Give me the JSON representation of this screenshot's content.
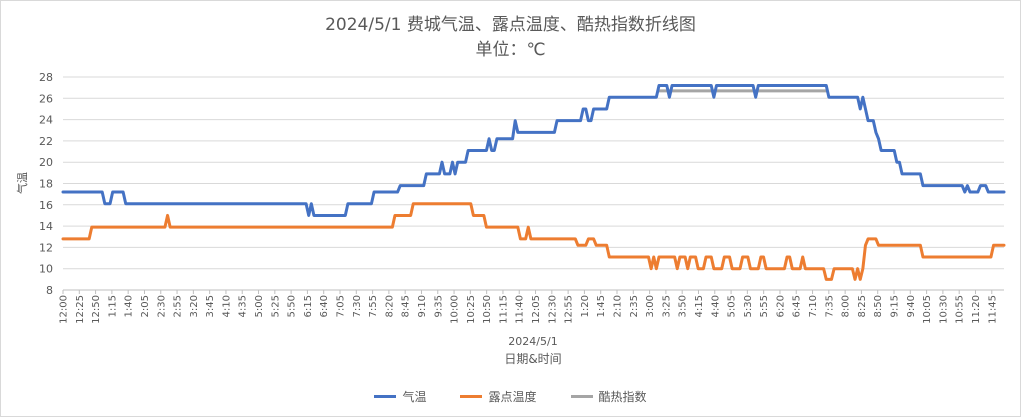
{
  "chart_data": {
    "type": "line",
    "title": "2024/5/1 费城气温、露点温度、酷热指数折线图",
    "subtitle": "单位：℃",
    "xlabel": "日期&时间",
    "date_label": "2024/5/1",
    "ylabel": "气温",
    "ylim": [
      8,
      28
    ],
    "yticks": [
      8,
      10,
      12,
      14,
      16,
      18,
      20,
      22,
      24,
      26,
      28
    ],
    "x_tick_labels": [
      "12:00",
      "12:25",
      "12:50",
      "1:15",
      "1:40",
      "2:05",
      "2:30",
      "2:55",
      "3:20",
      "3:45",
      "4:10",
      "4:35",
      "5:00",
      "5:25",
      "5:50",
      "6:15",
      "6:40",
      "7:05",
      "7:30",
      "7:55",
      "8:20",
      "8:45",
      "9:10",
      "9:35",
      "10:00",
      "10:25",
      "10:50",
      "11:15",
      "11:40",
      "12:05",
      "12:30",
      "12:55",
      "1:20",
      "1:45",
      "2:10",
      "2:35",
      "3:00",
      "3:25",
      "3:50",
      "4:15",
      "4:40",
      "5:05",
      "5:30",
      "5:55",
      "6:20",
      "6:45",
      "7:10",
      "7:35",
      "8:00",
      "8:25",
      "8:50",
      "9:15",
      "9:40",
      "10:05",
      "10:30",
      "10:55",
      "11:20",
      "11:45"
    ],
    "grid": true,
    "legend_position": "bottom",
    "series": [
      {
        "name": "气温",
        "color": "#4472C4",
        "points": [
          [
            0,
            17.2
          ],
          [
            7.5,
            17.2
          ],
          [
            8,
            16.1
          ],
          [
            9,
            16.1
          ],
          [
            9.5,
            17.2
          ],
          [
            11.5,
            17.2
          ],
          [
            12,
            16.1
          ],
          [
            46.5,
            16.1
          ],
          [
            47,
            15
          ],
          [
            47.5,
            16.1
          ],
          [
            48,
            15
          ],
          [
            54,
            15
          ],
          [
            54.5,
            16.1
          ],
          [
            59,
            16.1
          ],
          [
            59.5,
            17.2
          ],
          [
            64,
            17.2
          ],
          [
            64.5,
            17.8
          ],
          [
            69,
            17.8
          ],
          [
            69.5,
            18.9
          ],
          [
            72,
            18.9
          ],
          [
            72.5,
            20
          ],
          [
            73,
            18.9
          ],
          [
            74,
            18.9
          ],
          [
            74.5,
            20
          ],
          [
            75,
            18.9
          ],
          [
            75.5,
            20
          ],
          [
            77,
            20
          ],
          [
            77.5,
            21.1
          ],
          [
            81,
            21.1
          ],
          [
            81.5,
            22.2
          ],
          [
            82,
            21.1
          ],
          [
            82.5,
            21.1
          ],
          [
            83,
            22.2
          ],
          [
            86,
            22.2
          ],
          [
            86.5,
            23.9
          ],
          [
            87,
            22.8
          ],
          [
            94,
            22.8
          ],
          [
            94.5,
            23.9
          ],
          [
            99,
            23.9
          ],
          [
            99.5,
            25
          ],
          [
            100,
            25
          ],
          [
            100.5,
            23.9
          ],
          [
            101,
            23.9
          ],
          [
            101.5,
            25
          ],
          [
            104,
            25
          ],
          [
            104.5,
            26.1
          ],
          [
            113.5,
            26.1
          ],
          [
            114,
            27.2
          ],
          [
            115.5,
            27.2
          ],
          [
            116,
            26.1
          ],
          [
            116.5,
            27.2
          ],
          [
            124,
            27.2
          ],
          [
            124.5,
            26.1
          ],
          [
            125,
            27.2
          ],
          [
            132,
            27.2
          ],
          [
            132.5,
            26.1
          ],
          [
            133,
            27.2
          ],
          [
            146,
            27.2
          ],
          [
            146.5,
            26.1
          ],
          [
            152,
            26.1
          ],
          [
            152.5,
            25
          ],
          [
            153,
            26.1
          ],
          [
            154,
            23.9
          ],
          [
            155,
            23.9
          ],
          [
            155.5,
            22.8
          ],
          [
            156,
            22.2
          ],
          [
            156.5,
            21.1
          ],
          [
            159,
            21.1
          ],
          [
            159.5,
            20
          ],
          [
            160,
            20
          ],
          [
            160.5,
            18.9
          ],
          [
            164,
            18.9
          ],
          [
            164.5,
            17.8
          ],
          [
            172,
            17.8
          ],
          [
            172.5,
            17.2
          ],
          [
            173,
            17.8
          ],
          [
            173.5,
            17.2
          ],
          [
            175,
            17.2
          ],
          [
            175.5,
            17.8
          ],
          [
            176.5,
            17.8
          ],
          [
            177,
            17.2
          ],
          [
            180,
            17.2
          ]
        ]
      },
      {
        "name": "露点温度",
        "color": "#ED7D31",
        "points": [
          [
            0,
            12.8
          ],
          [
            5,
            12.8
          ],
          [
            5.5,
            13.9
          ],
          [
            19.5,
            13.9
          ],
          [
            20,
            15
          ],
          [
            20.5,
            13.9
          ],
          [
            63,
            13.9
          ],
          [
            63.5,
            15
          ],
          [
            66.5,
            15
          ],
          [
            67,
            16.1
          ],
          [
            78,
            16.1
          ],
          [
            78.5,
            15
          ],
          [
            80.5,
            15
          ],
          [
            81,
            13.9
          ],
          [
            87,
            13.9
          ],
          [
            87.5,
            12.8
          ],
          [
            88.5,
            12.8
          ],
          [
            89,
            13.9
          ],
          [
            89.5,
            12.8
          ],
          [
            98,
            12.8
          ],
          [
            98.5,
            12.2
          ],
          [
            100,
            12.2
          ],
          [
            100.5,
            12.8
          ],
          [
            101.5,
            12.8
          ],
          [
            102,
            12.2
          ],
          [
            104,
            12.2
          ],
          [
            104.5,
            11.1
          ],
          [
            112,
            11.1
          ],
          [
            112.5,
            10
          ],
          [
            113,
            11.1
          ],
          [
            113.5,
            10
          ],
          [
            114,
            11.1
          ],
          [
            117,
            11.1
          ],
          [
            117.5,
            10
          ],
          [
            118,
            11.1
          ],
          [
            119,
            11.1
          ],
          [
            119.5,
            10
          ],
          [
            120,
            11.1
          ],
          [
            121,
            11.1
          ],
          [
            121.5,
            10
          ],
          [
            122.5,
            10
          ],
          [
            123,
            11.1
          ],
          [
            124,
            11.1
          ],
          [
            124.5,
            10
          ],
          [
            126,
            10
          ],
          [
            126.5,
            11.1
          ],
          [
            127.5,
            11.1
          ],
          [
            128,
            10
          ],
          [
            129.5,
            10
          ],
          [
            130,
            11.1
          ],
          [
            131,
            11.1
          ],
          [
            131.5,
            10
          ],
          [
            133,
            10
          ],
          [
            133.5,
            11.1
          ],
          [
            134,
            11.1
          ],
          [
            134.5,
            10
          ],
          [
            138,
            10
          ],
          [
            138.5,
            11.1
          ],
          [
            139,
            11.1
          ],
          [
            139.5,
            10
          ],
          [
            141,
            10
          ],
          [
            141.5,
            11.1
          ],
          [
            142,
            10
          ],
          [
            145.5,
            10
          ],
          [
            146,
            9
          ],
          [
            147,
            9
          ],
          [
            147.5,
            10
          ],
          [
            151,
            10
          ],
          [
            151.5,
            9
          ],
          [
            152,
            10
          ],
          [
            152.5,
            9
          ],
          [
            153,
            10
          ],
          [
            153.5,
            12.2
          ],
          [
            154,
            12.8
          ],
          [
            155.5,
            12.8
          ],
          [
            156,
            12.2
          ],
          [
            164,
            12.2
          ],
          [
            164.5,
            11.1
          ],
          [
            177.5,
            11.1
          ],
          [
            178,
            12.2
          ],
          [
            180,
            12.2
          ]
        ]
      },
      {
        "name": "酷热指数",
        "color": "#A5A5A5",
        "points": [
          [
            114,
            26.7
          ],
          [
            146,
            26.7
          ]
        ]
      }
    ]
  }
}
